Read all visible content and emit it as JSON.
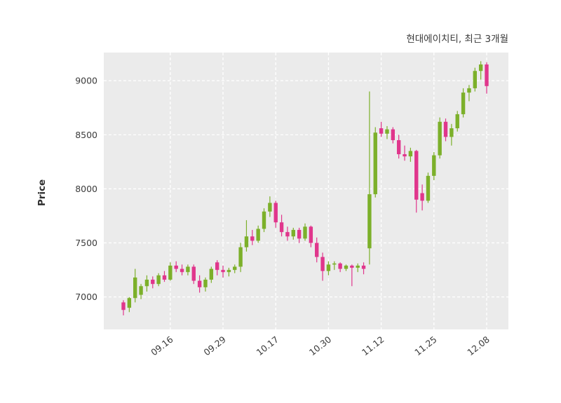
{
  "title": "현대에이치티, 최근 3개월",
  "ylabel": "Price",
  "chart_data": {
    "type": "candlestick",
    "title": "현대에이치티, 최근 3개월",
    "xlabel": "",
    "ylabel": "Price",
    "ylim": [
      6700,
      9260
    ],
    "yticks": [
      7000,
      7500,
      8000,
      8500,
      9000
    ],
    "xticklabels": [
      "09.16",
      "09.29",
      "10.17",
      "10.30",
      "11.12",
      "11.25",
      "12.08"
    ],
    "grid": true,
    "legend_position": "none",
    "colors": {
      "up": "#76b041",
      "up_fill": "#7cb02a",
      "down": "#e0368c",
      "plot_bg": "#ebebeb",
      "grid": "#ffffff",
      "text": "#3b3b3b",
      "figure_bg": "#ffffff"
    },
    "columns": [
      "date",
      "open",
      "high",
      "low",
      "close"
    ],
    "candles": [
      [
        "09.04",
        6950,
        6970,
        6830,
        6880
      ],
      [
        "09.05",
        6900,
        7000,
        6860,
        6990
      ],
      [
        "09.08",
        6990,
        7260,
        6950,
        7180
      ],
      [
        "09.09",
        7020,
        7120,
        6980,
        7100
      ],
      [
        "09.10",
        7100,
        7200,
        7050,
        7160
      ],
      [
        "09.11",
        7160,
        7190,
        7080,
        7120
      ],
      [
        "09.12",
        7120,
        7220,
        7100,
        7200
      ],
      [
        "09.15",
        7200,
        7240,
        7140,
        7160
      ],
      [
        "09.16",
        7160,
        7320,
        7150,
        7290
      ],
      [
        "09.17",
        7290,
        7330,
        7230,
        7260
      ],
      [
        "09.18",
        7260,
        7300,
        7200,
        7230
      ],
      [
        "09.19",
        7230,
        7300,
        7200,
        7280
      ],
      [
        "09.22",
        7280,
        7300,
        7120,
        7150
      ],
      [
        "09.23",
        7150,
        7200,
        7040,
        7090
      ],
      [
        "09.24",
        7090,
        7180,
        7050,
        7160
      ],
      [
        "09.25",
        7160,
        7280,
        7130,
        7260
      ],
      [
        "09.26",
        7320,
        7340,
        7200,
        7250
      ],
      [
        "09.29",
        7250,
        7290,
        7180,
        7230
      ],
      [
        "09.30",
        7230,
        7270,
        7190,
        7250
      ],
      [
        "10.01",
        7250,
        7300,
        7220,
        7280
      ],
      [
        "10.02",
        7280,
        7500,
        7230,
        7460
      ],
      [
        "10.10",
        7460,
        7710,
        7420,
        7560
      ],
      [
        "10.13",
        7560,
        7620,
        7480,
        7520
      ],
      [
        "10.14",
        7520,
        7660,
        7500,
        7630
      ],
      [
        "10.15",
        7630,
        7820,
        7600,
        7790
      ],
      [
        "10.16",
        7790,
        7930,
        7740,
        7870
      ],
      [
        "10.17",
        7870,
        7890,
        7640,
        7690
      ],
      [
        "10.20",
        7690,
        7760,
        7560,
        7600
      ],
      [
        "10.21",
        7600,
        7650,
        7520,
        7560
      ],
      [
        "10.22",
        7560,
        7640,
        7530,
        7620
      ],
      [
        "10.23",
        7620,
        7640,
        7500,
        7540
      ],
      [
        "10.24",
        7540,
        7680,
        7520,
        7650
      ],
      [
        "10.27",
        7650,
        7660,
        7460,
        7500
      ],
      [
        "10.28",
        7500,
        7550,
        7320,
        7370
      ],
      [
        "10.29",
        7370,
        7410,
        7150,
        7240
      ],
      [
        "10.30",
        7240,
        7330,
        7200,
        7300
      ],
      [
        "10.31",
        7300,
        7330,
        7250,
        7310
      ],
      [
        "11.03",
        7310,
        7320,
        7230,
        7260
      ],
      [
        "11.04",
        7260,
        7300,
        7240,
        7290
      ],
      [
        "11.05",
        7290,
        7300,
        7100,
        7270
      ],
      [
        "11.06",
        7270,
        7310,
        7230,
        7290
      ],
      [
        "11.07",
        7290,
        7320,
        7210,
        7260
      ],
      [
        "11.10",
        7450,
        8900,
        7300,
        7950
      ],
      [
        "11.11",
        7950,
        8570,
        7920,
        8520
      ],
      [
        "11.12",
        8560,
        8620,
        8480,
        8510
      ],
      [
        "11.13",
        8510,
        8580,
        8460,
        8550
      ],
      [
        "11.14",
        8550,
        8570,
        8420,
        8450
      ],
      [
        "11.17",
        8450,
        8500,
        8280,
        8320
      ],
      [
        "11.18",
        8320,
        8400,
        8260,
        8300
      ],
      [
        "11.19",
        8300,
        8380,
        8250,
        8350
      ],
      [
        "11.20",
        8350,
        8360,
        7780,
        7900
      ],
      [
        "11.21",
        7960,
        8040,
        7800,
        7890
      ],
      [
        "11.24",
        7890,
        8150,
        7870,
        8120
      ],
      [
        "11.25",
        8120,
        8340,
        8080,
        8310
      ],
      [
        "11.26",
        8310,
        8660,
        8280,
        8620
      ],
      [
        "11.27",
        8620,
        8650,
        8440,
        8480
      ],
      [
        "11.28",
        8480,
        8600,
        8400,
        8560
      ],
      [
        "12.01",
        8560,
        8720,
        8530,
        8690
      ],
      [
        "12.02",
        8690,
        8930,
        8660,
        8890
      ],
      [
        "12.03",
        8890,
        8960,
        8810,
        8930
      ],
      [
        "12.04",
        8930,
        9120,
        8900,
        9090
      ],
      [
        "12.05",
        9090,
        9180,
        9010,
        9150
      ],
      [
        "12.08",
        9150,
        9170,
        8880,
        8950
      ]
    ]
  }
}
